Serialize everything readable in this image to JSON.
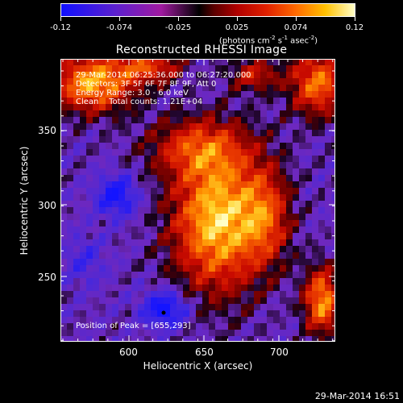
{
  "colorbar": {
    "tick_labels": [
      "-0.12",
      "-0.074",
      "-0.025",
      "0.025",
      "0.074",
      "0.12"
    ],
    "units_prefix": "(photons cm",
    "units_exp1": "-2",
    "units_mid1": " s",
    "units_exp2": "-1",
    "units_mid2": " asec",
    "units_exp3": "-2",
    "units_suffix": ")"
  },
  "title": "Reconstructed RHESSI Image",
  "info_lines": [
    "29-Mar-2014 06:25:36.000 to 06:27:20.000",
    "Detectors: 3F 5F 6F 7F 8F 9F, Att 0",
    "Energy Range: 3.0 - 6.0 keV",
    "Clean    Total counts: 1.21E+04"
  ],
  "peak_label": "Position of Peak = [655,293]",
  "x_axis": {
    "label": "Heliocentric X (arcsec)",
    "ticks": [
      "600",
      "650",
      "700"
    ]
  },
  "y_axis": {
    "label": "Heliocentric Y (arcsec)",
    "ticks": [
      "350",
      "300",
      "250"
    ]
  },
  "timestamp": "29-Mar-2014 16:51"
}
